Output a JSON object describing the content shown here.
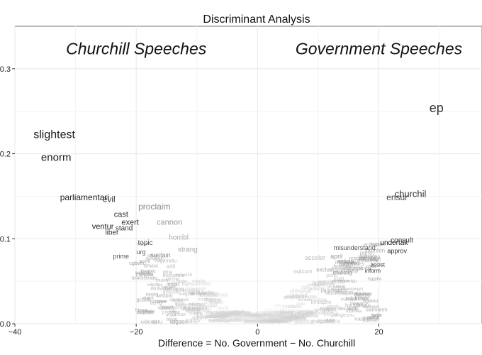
{
  "chart_data": {
    "type": "scatter",
    "title": "Discriminant Analysis",
    "xlabel": "Difference = No. Government − No. Churchill",
    "ylabel": "",
    "xlim": [
      -40,
      37
    ],
    "ylim": [
      0,
      0.35
    ],
    "x_ticks": [
      -40,
      -20,
      0,
      20
    ],
    "x_tick_labels": [
      "−40",
      "−20",
      "0",
      "20"
    ],
    "y_ticks": [
      0.0,
      0.1,
      0.2,
      0.3
    ],
    "y_tick_labels": [
      "0.0",
      "0.1",
      "0.2",
      "0.3"
    ],
    "grid": true,
    "annotations": [
      {
        "text": "Churchill Speeches",
        "x": -20,
        "y": 0.317
      },
      {
        "text": "Government Speeches",
        "x": 20,
        "y": 0.317
      }
    ],
    "points": [
      {
        "label": "ep",
        "x": 29.5,
        "y": 0.253,
        "size": 18,
        "color": "#333333"
      },
      {
        "label": "slightest",
        "x": -33.5,
        "y": 0.222,
        "size": 16,
        "color": "#1a1a1a"
      },
      {
        "label": "enorm",
        "x": -33.2,
        "y": 0.195,
        "size": 15,
        "color": "#1a1a1a"
      },
      {
        "label": "churchil",
        "x": 25.2,
        "y": 0.152,
        "size": 13,
        "color": "#333333"
      },
      {
        "label": "ensur",
        "x": 23,
        "y": 0.148,
        "size": 12,
        "color": "#444444"
      },
      {
        "label": "parliamentari",
        "x": -28.5,
        "y": 0.148,
        "size": 12,
        "color": "#222222"
      },
      {
        "label": "evil",
        "x": -24.5,
        "y": 0.146,
        "size": 12,
        "color": "#333333"
      },
      {
        "label": "proclaim",
        "x": -17,
        "y": 0.137,
        "size": 12,
        "color": "#888888"
      },
      {
        "label": "cast",
        "x": -22.5,
        "y": 0.128,
        "size": 11,
        "color": "#333333"
      },
      {
        "label": "exert",
        "x": -21,
        "y": 0.119,
        "size": 11,
        "color": "#333333"
      },
      {
        "label": "cannon",
        "x": -14.5,
        "y": 0.119,
        "size": 11,
        "color": "#999999"
      },
      {
        "label": "ventur",
        "x": -25.5,
        "y": 0.114,
        "size": 11,
        "color": "#222222"
      },
      {
        "label": "stand",
        "x": -22,
        "y": 0.112,
        "size": 10,
        "color": "#333333"
      },
      {
        "label": "liber",
        "x": -24,
        "y": 0.107,
        "size": 10,
        "color": "#333333"
      },
      {
        "label": "horribl",
        "x": -13,
        "y": 0.101,
        "size": 10,
        "color": "#aaaaaa"
      },
      {
        "label": "topic",
        "x": -18.5,
        "y": 0.095,
        "size": 10,
        "color": "#555555"
      },
      {
        "label": "consult",
        "x": 23.8,
        "y": 0.098,
        "size": 10,
        "color": "#333333"
      },
      {
        "label": "undertak",
        "x": 22.5,
        "y": 0.095,
        "size": 10,
        "color": "#222222"
      },
      {
        "label": "misunderstand",
        "x": 16,
        "y": 0.089,
        "size": 9,
        "color": "#555555"
      },
      {
        "label": "strang",
        "x": -11.5,
        "y": 0.087,
        "size": 10,
        "color": "#aaaaaa"
      },
      {
        "label": "approv",
        "x": 23,
        "y": 0.085,
        "size": 9,
        "color": "#333333"
      },
      {
        "label": "urg",
        "x": -19.2,
        "y": 0.084,
        "size": 9,
        "color": "#555555"
      },
      {
        "label": "sustain",
        "x": -16,
        "y": 0.08,
        "size": 9,
        "color": "#888888"
      },
      {
        "label": "prime",
        "x": -22.5,
        "y": 0.079,
        "size": 9,
        "color": "#555555"
      },
      {
        "label": "acceler",
        "x": 9.5,
        "y": 0.077,
        "size": 9,
        "color": "#bbbbbb"
      },
      {
        "label": "april",
        "x": 13,
        "y": 0.079,
        "size": 9,
        "color": "#999999"
      },
      {
        "label": "anticip",
        "x": 14.5,
        "y": 0.073,
        "size": 8,
        "color": "#888888"
      },
      {
        "label": "assist",
        "x": 19.8,
        "y": 0.069,
        "size": 8,
        "color": "#333333"
      },
      {
        "label": "outcom",
        "x": 7.5,
        "y": 0.061,
        "size": 8,
        "color": "#bbbbbb"
      },
      {
        "label": "exclus",
        "x": 11,
        "y": 0.063,
        "size": 8,
        "color": "#aaaaaa"
      },
      {
        "label": "investig",
        "x": 14,
        "y": 0.06,
        "size": 8,
        "color": "#999999"
      },
      {
        "label": "inform",
        "x": 19,
        "y": 0.062,
        "size": 8,
        "color": "#444444"
      }
    ],
    "cloud_count": 220
  }
}
